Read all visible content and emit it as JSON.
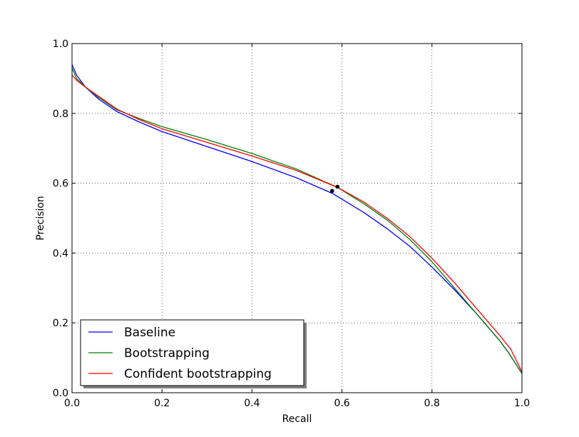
{
  "chart_data": {
    "type": "line",
    "title": "",
    "xlabel": "Recall",
    "ylabel": "Precision",
    "xlim": [
      0.0,
      1.0
    ],
    "ylim": [
      0.0,
      1.0
    ],
    "xticks": [
      "0.0",
      "0.2",
      "0.4",
      "0.6",
      "0.8",
      "1.0"
    ],
    "yticks": [
      "0.0",
      "0.2",
      "0.4",
      "0.6",
      "0.8",
      "1.0"
    ],
    "grid": true,
    "legend_position": "bottom-left",
    "series": [
      {
        "name": "Baseline",
        "color": "#0000ff",
        "x": [
          0.0,
          0.01,
          0.03,
          0.06,
          0.1,
          0.15,
          0.2,
          0.3,
          0.4,
          0.5,
          0.58,
          0.65,
          0.7,
          0.75,
          0.8,
          0.85,
          0.9,
          0.95,
          0.97,
          1.0
        ],
        "y": [
          0.94,
          0.91,
          0.875,
          0.84,
          0.805,
          0.775,
          0.748,
          0.705,
          0.662,
          0.615,
          0.57,
          0.515,
          0.47,
          0.42,
          0.36,
          0.295,
          0.225,
          0.15,
          0.115,
          0.055
        ]
      },
      {
        "name": "Bootstrapping",
        "color": "#008000",
        "x": [
          0.0,
          0.01,
          0.03,
          0.06,
          0.1,
          0.15,
          0.2,
          0.3,
          0.4,
          0.5,
          0.59,
          0.65,
          0.7,
          0.75,
          0.8,
          0.85,
          0.9,
          0.95,
          0.97,
          1.0
        ],
        "y": [
          0.93,
          0.9,
          0.875,
          0.845,
          0.81,
          0.785,
          0.762,
          0.725,
          0.685,
          0.64,
          0.588,
          0.54,
          0.495,
          0.44,
          0.375,
          0.3,
          0.225,
          0.15,
          0.115,
          0.055
        ]
      },
      {
        "name": "Confident bootstrapping",
        "color": "#ff0000",
        "x": [
          0.0,
          0.01,
          0.03,
          0.06,
          0.1,
          0.15,
          0.2,
          0.3,
          0.4,
          0.5,
          0.59,
          0.65,
          0.7,
          0.75,
          0.8,
          0.85,
          0.9,
          0.95,
          0.975,
          1.0
        ],
        "y": [
          0.91,
          0.895,
          0.875,
          0.848,
          0.812,
          0.782,
          0.756,
          0.717,
          0.678,
          0.636,
          0.588,
          0.545,
          0.5,
          0.448,
          0.385,
          0.315,
          0.24,
          0.165,
          0.125,
          0.06
        ]
      }
    ],
    "markers": [
      {
        "x": 0.578,
        "y": 0.578,
        "color": "#000000"
      },
      {
        "x": 0.59,
        "y": 0.59,
        "color": "#000000"
      }
    ]
  }
}
